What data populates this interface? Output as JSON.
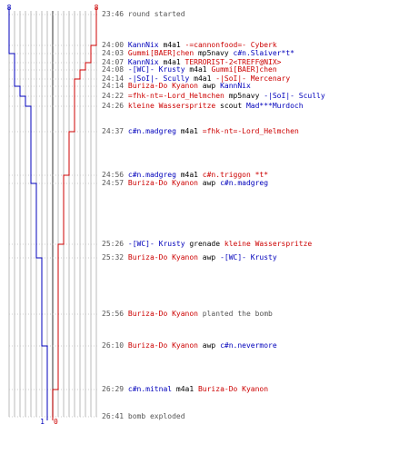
{
  "colors": {
    "team_blue": "#0000bb",
    "team_red": "#cc0000",
    "grid": "#bbbbbb",
    "text": "#000000",
    "muted": "#555555"
  },
  "teams": {
    "blue": {
      "start_count": "8",
      "end_count": "1"
    },
    "red": {
      "start_count": "8",
      "end_count": "0"
    }
  },
  "events": [
    {
      "time": "23:46",
      "parts": [
        {
          "text": "round started",
          "c": "muted"
        }
      ]
    },
    {
      "time": "24:00",
      "parts": [
        {
          "text": "KannNix",
          "c": "blue"
        },
        {
          "text": " m4a1 ",
          "c": "text"
        },
        {
          "text": "-=cannonfood=- Cyberk",
          "c": "red"
        }
      ]
    },
    {
      "time": "24:03",
      "parts": [
        {
          "text": "Gummi[BAER]chen",
          "c": "red"
        },
        {
          "text": " mp5navy ",
          "c": "text"
        },
        {
          "text": "c#n.Slaiver*t*",
          "c": "blue"
        }
      ]
    },
    {
      "time": "24:07",
      "parts": [
        {
          "text": "KannNix",
          "c": "blue"
        },
        {
          "text": " m4a1 ",
          "c": "text"
        },
        {
          "text": "TERRORIST-2<TREFF@NIX>",
          "c": "red"
        }
      ]
    },
    {
      "time": "24:08",
      "parts": [
        {
          "text": "-[WC]- Krusty",
          "c": "blue"
        },
        {
          "text": " m4a1 ",
          "c": "text"
        },
        {
          "text": "Gummi[BAER]chen",
          "c": "red"
        }
      ]
    },
    {
      "time": "24:14",
      "parts": [
        {
          "text": "-|SoI|- Scully",
          "c": "blue"
        },
        {
          "text": " m4a1 ",
          "c": "text"
        },
        {
          "text": "-|SoI|- Mercenary",
          "c": "red"
        }
      ]
    },
    {
      "time": "24:14",
      "parts": [
        {
          "text": "Buriza-Do Kyanon",
          "c": "red"
        },
        {
          "text": " awp ",
          "c": "text"
        },
        {
          "text": "KannNix",
          "c": "blue"
        }
      ]
    },
    {
      "time": "24:22",
      "parts": [
        {
          "text": "=fhk-nt=-Lord_Helmchen",
          "c": "red"
        },
        {
          "text": " mp5navy ",
          "c": "text"
        },
        {
          "text": "-|SoI|- Scully",
          "c": "blue"
        }
      ]
    },
    {
      "time": "24:26",
      "parts": [
        {
          "text": "kleine Wasserspritze",
          "c": "red"
        },
        {
          "text": " scout ",
          "c": "text"
        },
        {
          "text": "Mad***Murdoch",
          "c": "blue"
        }
      ]
    },
    {
      "time": "24:37",
      "parts": [
        {
          "text": "c#n.madgreg",
          "c": "blue"
        },
        {
          "text": " m4a1 ",
          "c": "text"
        },
        {
          "text": "=fhk-nt=-Lord_Helmchen",
          "c": "red"
        }
      ]
    },
    {
      "time": "24:56",
      "parts": [
        {
          "text": "c#n.madgreg",
          "c": "blue"
        },
        {
          "text": " m4a1 ",
          "c": "text"
        },
        {
          "text": "c#n.triggon *t*",
          "c": "red"
        }
      ]
    },
    {
      "time": "24:57",
      "parts": [
        {
          "text": "Buriza-Do Kyanon",
          "c": "red"
        },
        {
          "text": " awp ",
          "c": "text"
        },
        {
          "text": "c#n.madgreg",
          "c": "blue"
        }
      ]
    },
    {
      "time": "25:26",
      "parts": [
        {
          "text": "-[WC]- Krusty",
          "c": "blue"
        },
        {
          "text": " grenade ",
          "c": "text"
        },
        {
          "text": "kleine Wasserspritze",
          "c": "red"
        }
      ]
    },
    {
      "time": "25:32",
      "parts": [
        {
          "text": "Buriza-Do Kyanon",
          "c": "red"
        },
        {
          "text": " awp ",
          "c": "text"
        },
        {
          "text": "-[WC]- Krusty",
          "c": "blue"
        }
      ]
    },
    {
      "time": "25:56",
      "parts": [
        {
          "text": "Buriza-Do Kyanon",
          "c": "red"
        },
        {
          "text": " planted the bomb",
          "c": "muted"
        }
      ]
    },
    {
      "time": "26:10",
      "parts": [
        {
          "text": "Buriza-Do Kyanon",
          "c": "red"
        },
        {
          "text": " awp ",
          "c": "text"
        },
        {
          "text": "c#n.nevermore",
          "c": "blue"
        }
      ]
    },
    {
      "time": "26:29",
      "parts": [
        {
          "text": "c#n.mitnal",
          "c": "blue"
        },
        {
          "text": " m4a1 ",
          "c": "text"
        },
        {
          "text": "Buriza-Do Kyanon",
          "c": "red"
        }
      ]
    },
    {
      "time": "26:41",
      "parts": [
        {
          "text": "bomb exploded",
          "c": "muted"
        }
      ]
    }
  ]
}
